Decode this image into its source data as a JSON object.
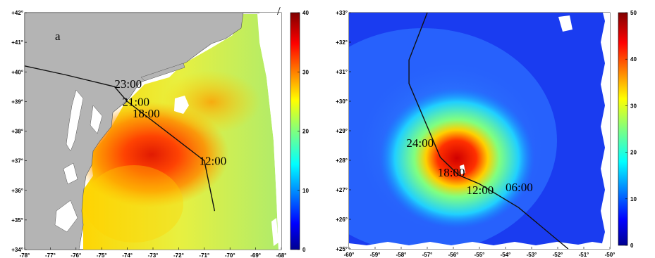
{
  "panels": [
    {
      "id": "a",
      "label": "a",
      "lon_ticks": [
        "-78°",
        "-77°",
        "-76°",
        "-75°",
        "-74°",
        "-73°",
        "-72°",
        "-71°",
        "-70°",
        "-69°",
        "-68°"
      ],
      "lat_ticks": [
        "+34°",
        "+35°",
        "+36°",
        "+37°",
        "+38°",
        "+39°",
        "+40°",
        "+41°",
        "+42°"
      ],
      "lon_range": [
        -78,
        -68
      ],
      "lat_range": [
        34,
        42
      ],
      "colorbar": {
        "min": 0,
        "max": 40,
        "ticks": [
          "0",
          "10",
          "20",
          "30",
          "40"
        ]
      },
      "track_times": [
        {
          "label": "23:00",
          "lon": -74.5,
          "lat": 39.6
        },
        {
          "label": "21:00",
          "lon": -74.2,
          "lat": 39.0
        },
        {
          "label": "18:00",
          "lon": -73.8,
          "lat": 38.6
        },
        {
          "label": "12:00",
          "lon": -71.2,
          "lat": 37.0
        }
      ],
      "track": [
        [
          -78,
          40.2
        ],
        [
          -76.4,
          39.9
        ],
        [
          -74.5,
          39.5
        ],
        [
          -74.0,
          39.0
        ],
        [
          -71.0,
          37.0
        ],
        [
          -70.6,
          35.3
        ]
      ]
    },
    {
      "id": "b",
      "label": "/",
      "lon_ticks": [
        "-60°",
        "-59°",
        "-58°",
        "-57°",
        "-56°",
        "-55°",
        "-54°",
        "-53°",
        "-52°",
        "-51°",
        "-50°"
      ],
      "lat_ticks": [
        "+25°",
        "+26°",
        "+27°",
        "+28°",
        "+29°",
        "+30°",
        "+31°",
        "+32°",
        "+33°"
      ],
      "lon_range": [
        -60,
        -50
      ],
      "lat_range": [
        25,
        33
      ],
      "colorbar": {
        "min": 0,
        "max": 50,
        "ticks": [
          "0",
          "10",
          "20",
          "30",
          "40",
          "50"
        ]
      },
      "track_times": [
        {
          "label": "24:00",
          "lon": -57.8,
          "lat": 28.6
        },
        {
          "label": "18:00",
          "lon": -56.6,
          "lat": 27.6
        },
        {
          "label": "12:00",
          "lon": -55.5,
          "lat": 27.0
        },
        {
          "label": "06:00",
          "lon": -54.0,
          "lat": 27.1
        }
      ],
      "track": [
        [
          -57.0,
          33.0
        ],
        [
          -57.7,
          31.4
        ],
        [
          -57.7,
          30.6
        ],
        [
          -56.5,
          28.1
        ],
        [
          -55.8,
          27.5
        ],
        [
          -55.0,
          27.2
        ],
        [
          -53.5,
          26.4
        ],
        [
          -51.6,
          25.0
        ]
      ]
    }
  ],
  "colors": {
    "land": "#b4b4b4",
    "coast": "#555555",
    "track": "#111111",
    "background": "#ffffff"
  }
}
